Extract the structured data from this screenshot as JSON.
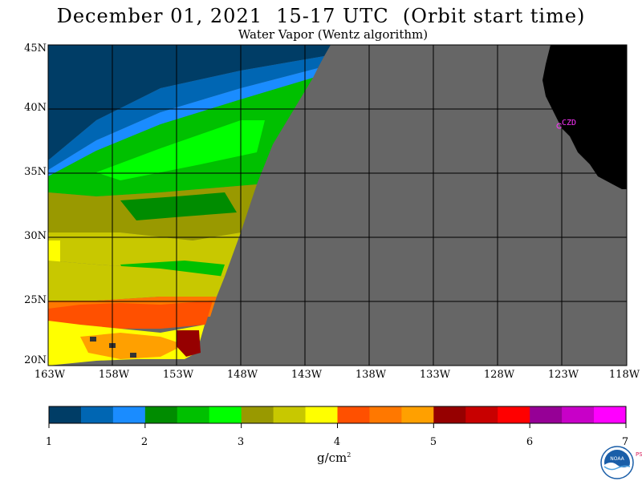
{
  "title": "December 01, 2021  15-17 UTC  (Orbit start time)",
  "subtitle": "Water Vapor (Wentz algorithm)",
  "map": {
    "lat_labels": [
      "45N",
      "40N",
      "35N",
      "30N",
      "25N",
      "20N"
    ],
    "lon_labels": [
      "163W",
      "158W",
      "153W",
      "148W",
      "143W",
      "138W",
      "133W",
      "128W",
      "123W",
      "118W"
    ],
    "station_label": "CZD",
    "station_color": "#ff33ff",
    "no_data_color": "#666666",
    "land_color": "#000000",
    "grid_color": "#000000"
  },
  "colorbar": {
    "ticks": [
      "1",
      "2",
      "3",
      "4",
      "5",
      "6",
      "7"
    ],
    "units": "g/cm",
    "units_sup": "2",
    "colors": [
      "#003d66",
      "#0066b3",
      "#1a8cff",
      "#008c00",
      "#00c000",
      "#00ff00",
      "#999900",
      "#c8c800",
      "#ffff00",
      "#ff5000",
      "#ff7800",
      "#ffa000",
      "#960000",
      "#c80000",
      "#ff0000",
      "#960096",
      "#c800c8",
      "#ff00ff"
    ]
  },
  "logo": {
    "text": "NOAA",
    "side_text": "PSL"
  }
}
